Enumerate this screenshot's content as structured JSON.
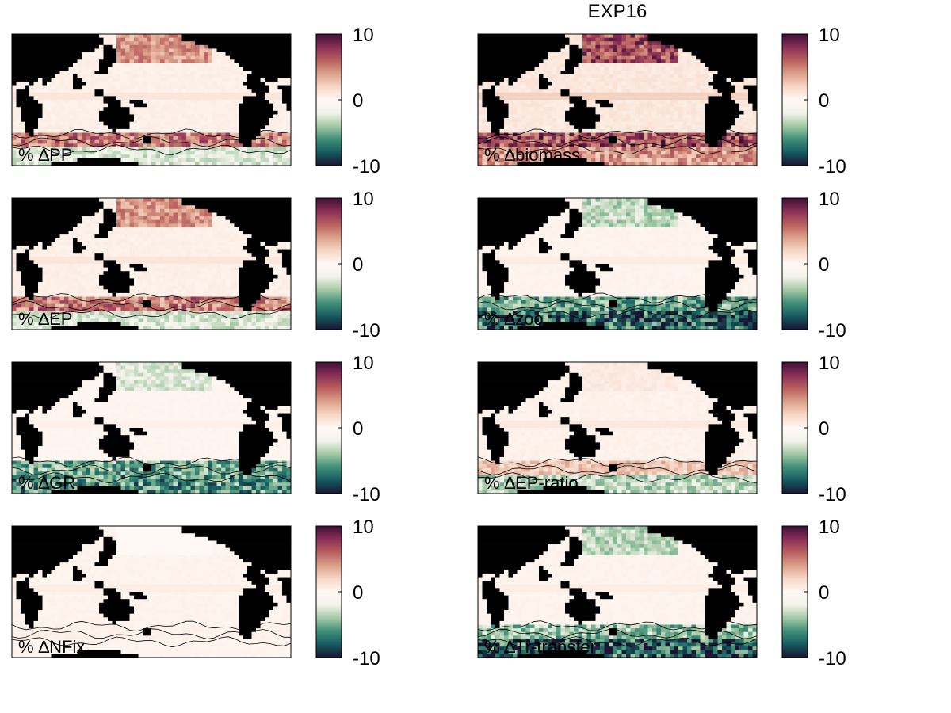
{
  "figure": {
    "title": "EXP16"
  },
  "chart_data": [
    {
      "type": "heatmap",
      "label": "% ∆PP",
      "colorbar": {
        "ticks": [
          10,
          0,
          -10
        ],
        "range": [
          -10,
          10
        ]
      },
      "pattern": {
        "north_pacific": 5,
        "southern_band": 6,
        "southern_ocean": -3,
        "interior": 0.5
      }
    },
    {
      "type": "heatmap",
      "label": "% ∆biomass",
      "colorbar": {
        "ticks": [
          10,
          0,
          -10
        ],
        "range": [
          -10,
          10
        ]
      },
      "pattern": {
        "north_pacific": 8,
        "southern_band": 8,
        "southern_ocean": 5,
        "interior": 1
      }
    },
    {
      "type": "heatmap",
      "label": "% ∆EP",
      "colorbar": {
        "ticks": [
          10,
          0,
          -10
        ],
        "range": [
          -10,
          10
        ]
      },
      "pattern": {
        "north_pacific": 5,
        "southern_band": 6,
        "southern_ocean": -3,
        "interior": 0.5
      }
    },
    {
      "type": "heatmap",
      "label": "% ∆zoo",
      "colorbar": {
        "ticks": [
          10,
          0,
          -10
        ],
        "range": [
          -10,
          10
        ]
      },
      "pattern": {
        "north_pacific": -4,
        "southern_band": -6,
        "southern_ocean": -9,
        "interior": 0.3
      }
    },
    {
      "type": "heatmap",
      "label": "% ∆GR",
      "colorbar": {
        "ticks": [
          10,
          0,
          -10
        ],
        "range": [
          -10,
          10
        ]
      },
      "pattern": {
        "north_pacific": -3,
        "southern_band": -6,
        "southern_ocean": -7,
        "interior": 0.2
      }
    },
    {
      "type": "heatmap",
      "label": "% ∆EP-ratio",
      "colorbar": {
        "ticks": [
          10,
          0,
          -10
        ],
        "range": [
          -10,
          10
        ]
      },
      "pattern": {
        "north_pacific": 1,
        "southern_band": 3,
        "southern_ocean": -4,
        "interior": 0.4
      }
    },
    {
      "type": "heatmap",
      "label": "% ∆NFix",
      "colorbar": {
        "ticks": [
          10,
          0,
          -10
        ],
        "range": [
          -10,
          10
        ]
      },
      "pattern": {
        "north_pacific": 0,
        "southern_band": 0.5,
        "southern_ocean": 0.3,
        "interior": 0.3
      }
    },
    {
      "type": "heatmap",
      "label": "% ∆Tr-transfer",
      "colorbar": {
        "ticks": [
          10,
          0,
          -10
        ],
        "range": [
          -10,
          10
        ]
      },
      "pattern": {
        "north_pacific": -4,
        "southern_band": -5,
        "southern_ocean": -9,
        "interior": 0.3
      }
    }
  ],
  "colormap": {
    "stops": [
      "#1a1533",
      "#155a5e",
      "#3f8f79",
      "#a3c8a4",
      "#f2f3ea",
      "#fff8f4",
      "#f7d7c6",
      "#dba08a",
      "#b9605f",
      "#8a2f56",
      "#3d1035"
    ],
    "land_color": "#000000"
  }
}
